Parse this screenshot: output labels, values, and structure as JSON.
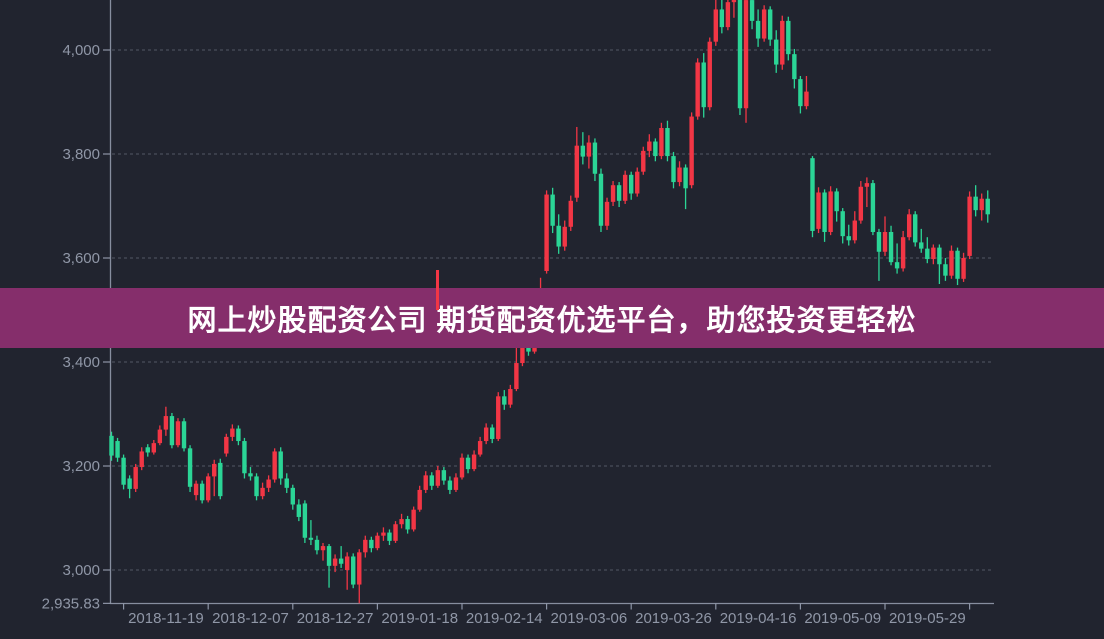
{
  "banner": {
    "text": "网上炒股配资公司 期货配资优选平台，助您投资更轻松",
    "bg_color": "#852e6b",
    "text_color": "#ffffff"
  },
  "chart_data": {
    "type": "candlestick",
    "title": "",
    "xlabel": "",
    "ylabel": "",
    "background": "#21242f",
    "up_color": "#f23645",
    "down_color": "#2bd596",
    "grid_color": "#7b8293",
    "axis_line_color": "#99a1b3",
    "axis_label_color": "#9097a7",
    "grid": "dashed horizontal",
    "legend": "none",
    "ylim": [
      2935.83,
      4096
    ],
    "y_ticks": [
      {
        "value": 4000,
        "label": "4,000"
      },
      {
        "value": 3800,
        "label": "3,800"
      },
      {
        "value": 3600,
        "label": "3,600"
      },
      {
        "value": 3400,
        "label": "3,400"
      },
      {
        "value": 3200,
        "label": "3,200"
      },
      {
        "value": 3000,
        "label": "3,000"
      },
      {
        "value": 2935.83,
        "label": "2,935.83"
      }
    ],
    "x_labels": [
      "2018-11-19",
      "2018-12-07",
      "2018-12-27",
      "2019-01-18",
      "2019-02-14",
      "2019-03-06",
      "2019-03-26",
      "2019-04-16",
      "2019-05-09",
      "2019-05-29"
    ],
    "x_label_first_candle_index": 9,
    "x_label_candle_step": 14,
    "candles_format": [
      "open",
      "high",
      "low",
      "close"
    ],
    "candles": [
      [
        3258,
        3266,
        3210,
        3220
      ],
      [
        3248,
        3254,
        3208,
        3216
      ],
      [
        3216,
        3222,
        3155,
        3164
      ],
      [
        3176,
        3182,
        3138,
        3156
      ],
      [
        3156,
        3204,
        3150,
        3198
      ],
      [
        3198,
        3236,
        3192,
        3228
      ],
      [
        3236,
        3242,
        3218,
        3226
      ],
      [
        3226,
        3250,
        3222,
        3244
      ],
      [
        3244,
        3278,
        3240,
        3270
      ],
      [
        3270,
        3314,
        3258,
        3296
      ],
      [
        3296,
        3302,
        3234,
        3240
      ],
      [
        3240,
        3292,
        3236,
        3286
      ],
      [
        3286,
        3292,
        3228,
        3234
      ],
      [
        3234,
        3240,
        3150,
        3160
      ],
      [
        3144,
        3172,
        3134,
        3166
      ],
      [
        3166,
        3172,
        3128,
        3134
      ],
      [
        3134,
        3186,
        3130,
        3180
      ],
      [
        3180,
        3212,
        3142,
        3204
      ],
      [
        3206,
        3214,
        3136,
        3142
      ],
      [
        3224,
        3262,
        3218,
        3256
      ],
      [
        3256,
        3280,
        3248,
        3272
      ],
      [
        3272,
        3278,
        3240,
        3248
      ],
      [
        3248,
        3254,
        3176,
        3186
      ],
      [
        3186,
        3198,
        3172,
        3180
      ],
      [
        3180,
        3186,
        3134,
        3142
      ],
      [
        3142,
        3168,
        3136,
        3158
      ],
      [
        3158,
        3182,
        3150,
        3174
      ],
      [
        3174,
        3234,
        3168,
        3228
      ],
      [
        3228,
        3236,
        3164,
        3176
      ],
      [
        3176,
        3186,
        3148,
        3158
      ],
      [
        3158,
        3164,
        3116,
        3126
      ],
      [
        3126,
        3136,
        3094,
        3102
      ],
      [
        3128,
        3134,
        3052,
        3062
      ],
      [
        3062,
        3096,
        3048,
        3058
      ],
      [
        3058,
        3066,
        3030,
        3038
      ],
      [
        3038,
        3052,
        3018,
        3046
      ],
      [
        3046,
        3050,
        2966,
        3008
      ],
      [
        3008,
        3030,
        2996,
        3022
      ],
      [
        3022,
        3046,
        3004,
        3012
      ],
      [
        3000,
        3034,
        2962,
        3026
      ],
      [
        3026,
        3032,
        2965,
        2972
      ],
      [
        2972,
        3040,
        2936,
        3034
      ],
      [
        3034,
        3066,
        3024,
        3058
      ],
      [
        3058,
        3064,
        3034,
        3042
      ],
      [
        3042,
        3072,
        3038,
        3066
      ],
      [
        3066,
        3082,
        3056,
        3072
      ],
      [
        3072,
        3078,
        3048,
        3056
      ],
      [
        3056,
        3094,
        3052,
        3088
      ],
      [
        3088,
        3108,
        3080,
        3098
      ],
      [
        3098,
        3104,
        3070,
        3078
      ],
      [
        3078,
        3122,
        3074,
        3116
      ],
      [
        3116,
        3162,
        3112,
        3154
      ],
      [
        3154,
        3190,
        3148,
        3182
      ],
      [
        3182,
        3188,
        3154,
        3162
      ],
      [
        3162,
        3200,
        3158,
        3192
      ],
      [
        3192,
        3198,
        3164,
        3172
      ],
      [
        3172,
        3180,
        3146,
        3154
      ],
      [
        3154,
        3186,
        3150,
        3178
      ],
      [
        3178,
        3224,
        3174,
        3216
      ],
      [
        3216,
        3222,
        3186,
        3194
      ],
      [
        3194,
        3230,
        3190,
        3222
      ],
      [
        3222,
        3256,
        3218,
        3248
      ],
      [
        3248,
        3282,
        3242,
        3274
      ],
      [
        3274,
        3280,
        3244,
        3252
      ],
      [
        3252,
        3342,
        3248,
        3334
      ],
      [
        3334,
        3346,
        3308,
        3318
      ],
      [
        3318,
        3356,
        3312,
        3348
      ],
      [
        3348,
        3438,
        3344,
        3398
      ],
      [
        3398,
        3446,
        3392,
        3442
      ],
      [
        3442,
        3450,
        3412,
        3420
      ],
      [
        3420,
        3492,
        3416,
        3488
      ],
      [
        3488,
        3562,
        3482,
        3540
      ],
      [
        3575,
        3730,
        3570,
        3722
      ],
      [
        3722,
        3735,
        3648,
        3662
      ],
      [
        3662,
        3684,
        3608,
        3622
      ],
      [
        3622,
        3672,
        3614,
        3660
      ],
      [
        3660,
        3720,
        3652,
        3710
      ],
      [
        3716,
        3852,
        3708,
        3816
      ],
      [
        3816,
        3842,
        3780,
        3795
      ],
      [
        3795,
        3836,
        3772,
        3822
      ],
      [
        3822,
        3830,
        3748,
        3762
      ],
      [
        3762,
        3772,
        3650,
        3662
      ],
      [
        3662,
        3716,
        3654,
        3708
      ],
      [
        3708,
        3748,
        3700,
        3740
      ],
      [
        3740,
        3746,
        3698,
        3710
      ],
      [
        3710,
        3768,
        3704,
        3760
      ],
      [
        3760,
        3766,
        3712,
        3724
      ],
      [
        3724,
        3774,
        3718,
        3766
      ],
      [
        3766,
        3814,
        3760,
        3806
      ],
      [
        3806,
        3838,
        3794,
        3824
      ],
      [
        3824,
        3830,
        3786,
        3796
      ],
      [
        3796,
        3860,
        3790,
        3850
      ],
      [
        3850,
        3864,
        3786,
        3796
      ],
      [
        3796,
        3804,
        3734,
        3746
      ],
      [
        3746,
        3786,
        3738,
        3774
      ],
      [
        3774,
        3780,
        3694,
        3734
      ],
      [
        3740,
        3880,
        3734,
        3872
      ],
      [
        3872,
        3984,
        3866,
        3976
      ],
      [
        3976,
        3994,
        3870,
        3890
      ],
      [
        3890,
        4024,
        3884,
        4016
      ],
      [
        4016,
        4100,
        4008,
        4078
      ],
      [
        4078,
        4102,
        4032,
        4044
      ],
      [
        4044,
        4104,
        4038,
        4092
      ],
      [
        4092,
        4118,
        4062,
        4104
      ],
      [
        4104,
        4116,
        3875,
        3888
      ],
      [
        3888,
        4108,
        3860,
        4096
      ],
      [
        4096,
        4106,
        4040,
        4056
      ],
      [
        4056,
        4078,
        4006,
        4022
      ],
      [
        4022,
        4086,
        4016,
        4078
      ],
      [
        4078,
        4084,
        4008,
        4020
      ],
      [
        4020,
        4038,
        3956,
        3972
      ],
      [
        3972,
        4066,
        3962,
        4056
      ],
      [
        4056,
        4064,
        3980,
        3992
      ],
      [
        3992,
        4002,
        3926,
        3944
      ],
      [
        3944,
        3950,
        3878,
        3892
      ],
      [
        3892,
        3950,
        3886,
        3920
      ],
      [
        3792,
        3796,
        3640,
        3652
      ],
      [
        3656,
        3736,
        3648,
        3726
      ],
      [
        3726,
        3732,
        3631,
        3650
      ],
      [
        3650,
        3738,
        3644,
        3728
      ],
      [
        3728,
        3734,
        3670,
        3690
      ],
      [
        3690,
        3696,
        3628,
        3642
      ],
      [
        3642,
        3664,
        3624,
        3634
      ],
      [
        3634,
        3690,
        3628,
        3672
      ],
      [
        3672,
        3748,
        3666,
        3737
      ],
      [
        3737,
        3755,
        3698,
        3744
      ],
      [
        3744,
        3750,
        3644,
        3650
      ],
      [
        3650,
        3656,
        3556,
        3612
      ],
      [
        3612,
        3680,
        3604,
        3650
      ],
      [
        3650,
        3662,
        3586,
        3592
      ],
      [
        3592,
        3628,
        3570,
        3580
      ],
      [
        3580,
        3652,
        3574,
        3640
      ],
      [
        3640,
        3694,
        3634,
        3684
      ],
      [
        3684,
        3690,
        3622,
        3630
      ],
      [
        3630,
        3656,
        3610,
        3618
      ],
      [
        3618,
        3640,
        3590,
        3598
      ],
      [
        3598,
        3626,
        3588,
        3620
      ],
      [
        3620,
        3626,
        3550,
        3588
      ],
      [
        3588,
        3600,
        3556,
        3566
      ],
      [
        3566,
        3624,
        3560,
        3614
      ],
      [
        3614,
        3620,
        3548,
        3560
      ],
      [
        3560,
        3610,
        3554,
        3600
      ],
      [
        3604,
        3728,
        3598,
        3718
      ],
      [
        3718,
        3740,
        3680,
        3692
      ],
      [
        3692,
        3724,
        3672,
        3714
      ],
      [
        3714,
        3730,
        3668,
        3684
      ]
    ]
  }
}
